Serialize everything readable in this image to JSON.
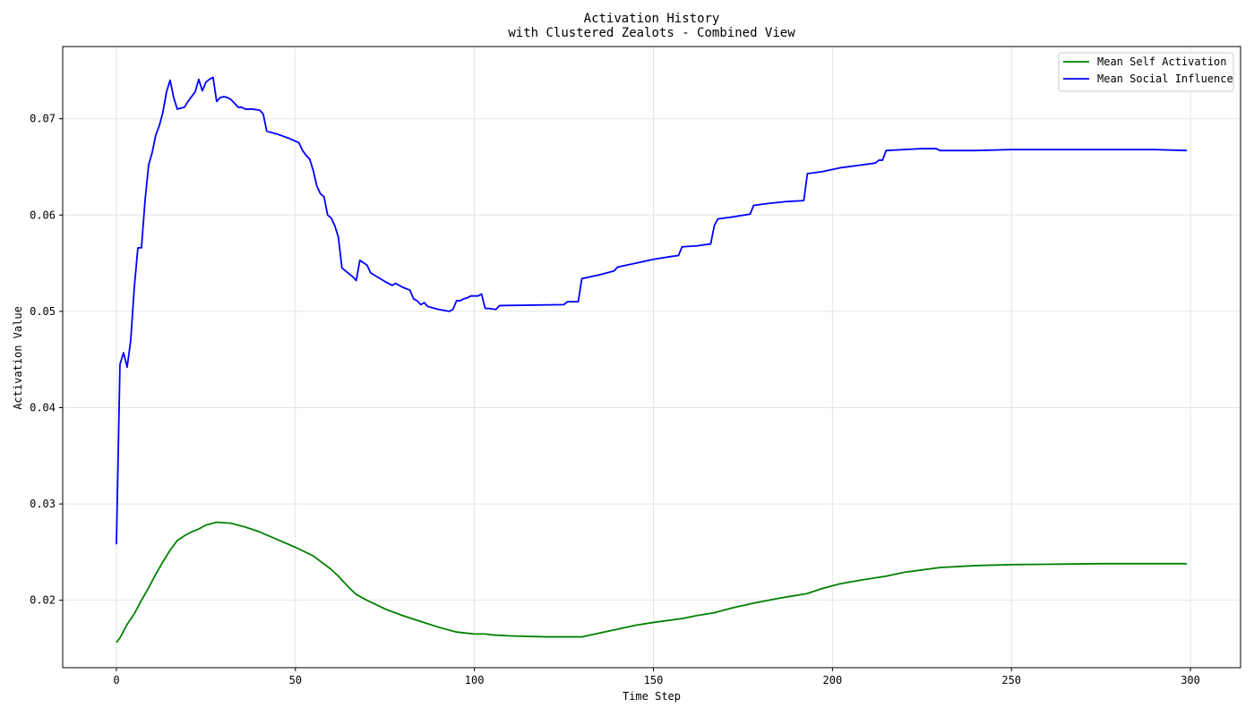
{
  "chart_data": {
    "type": "line",
    "title": "Activation History",
    "subtitle": "with Clustered Zealots - Combined View",
    "xlabel": "Time Step",
    "ylabel": "Activation Value",
    "xlim": [
      -15,
      314
    ],
    "ylim": [
      0.013,
      0.0775
    ],
    "xticks": [
      "0",
      "50",
      "100",
      "150",
      "200",
      "250",
      "300"
    ],
    "yticks": [
      "0.02",
      "0.03",
      "0.04",
      "0.05",
      "0.06",
      "0.07"
    ],
    "grid": true,
    "legend_position": "top-right",
    "series": [
      {
        "name": "Mean Self Activation",
        "color": "#008000",
        "points": [
          [
            0,
            0.0156
          ],
          [
            1,
            0.0161
          ],
          [
            3,
            0.0175
          ],
          [
            5,
            0.0186
          ],
          [
            7,
            0.02
          ],
          [
            9,
            0.0213
          ],
          [
            11,
            0.0227
          ],
          [
            13,
            0.024
          ],
          [
            15,
            0.0252
          ],
          [
            17,
            0.0262
          ],
          [
            19,
            0.0267
          ],
          [
            21,
            0.0271
          ],
          [
            23,
            0.0274
          ],
          [
            25,
            0.0278
          ],
          [
            28,
            0.0281
          ],
          [
            32,
            0.028
          ],
          [
            36,
            0.0276
          ],
          [
            40,
            0.0271
          ],
          [
            45,
            0.0263
          ],
          [
            50,
            0.0255
          ],
          [
            55,
            0.0246
          ],
          [
            60,
            0.0232
          ],
          [
            62,
            0.0225
          ],
          [
            65,
            0.0213
          ],
          [
            67,
            0.0206
          ],
          [
            70,
            0.02
          ],
          [
            75,
            0.0191
          ],
          [
            80,
            0.0184
          ],
          [
            85,
            0.0178
          ],
          [
            90,
            0.0172
          ],
          [
            95,
            0.0167
          ],
          [
            100,
            0.0165
          ],
          [
            103,
            0.0165
          ],
          [
            105,
            0.0164
          ],
          [
            110,
            0.0163
          ],
          [
            120,
            0.0162
          ],
          [
            130,
            0.0162
          ],
          [
            135,
            0.0166
          ],
          [
            140,
            0.017
          ],
          [
            145,
            0.0174
          ],
          [
            150,
            0.0177
          ],
          [
            158,
            0.0181
          ],
          [
            162,
            0.0184
          ],
          [
            167,
            0.0187
          ],
          [
            172,
            0.0192
          ],
          [
            178,
            0.0197
          ],
          [
            185,
            0.0202
          ],
          [
            193,
            0.0207
          ],
          [
            197,
            0.0212
          ],
          [
            202,
            0.0217
          ],
          [
            208,
            0.0221
          ],
          [
            215,
            0.0225
          ],
          [
            220,
            0.0229
          ],
          [
            230,
            0.0234
          ],
          [
            240,
            0.0236
          ],
          [
            250,
            0.0237
          ],
          [
            275,
            0.0238
          ],
          [
            299,
            0.0238
          ]
        ]
      },
      {
        "name": "Mean Social Influence",
        "color": "#0000ff",
        "points": [
          [
            0,
            0.0258
          ],
          [
            1,
            0.0445
          ],
          [
            2,
            0.0457
          ],
          [
            3,
            0.0442
          ],
          [
            4,
            0.047
          ],
          [
            5,
            0.0525
          ],
          [
            6,
            0.0566
          ],
          [
            7,
            0.0566
          ],
          [
            8,
            0.0615
          ],
          [
            9,
            0.0652
          ],
          [
            10,
            0.0665
          ],
          [
            11,
            0.0683
          ],
          [
            12,
            0.0693
          ],
          [
            13,
            0.0707
          ],
          [
            14,
            0.0728
          ],
          [
            15,
            0.074
          ],
          [
            16,
            0.0722
          ],
          [
            17,
            0.071
          ],
          [
            18,
            0.0711
          ],
          [
            19,
            0.0712
          ],
          [
            20,
            0.0718
          ],
          [
            21,
            0.0723
          ],
          [
            22,
            0.0728
          ],
          [
            23,
            0.0741
          ],
          [
            24,
            0.0729
          ],
          [
            25,
            0.0738
          ],
          [
            26,
            0.0741
          ],
          [
            27,
            0.0743
          ],
          [
            28,
            0.0718
          ],
          [
            29,
            0.0722
          ],
          [
            30,
            0.0723
          ],
          [
            31,
            0.0722
          ],
          [
            32,
            0.072
          ],
          [
            33,
            0.0716
          ],
          [
            34,
            0.0712
          ],
          [
            35,
            0.0712
          ],
          [
            36,
            0.071
          ],
          [
            38,
            0.071
          ],
          [
            40,
            0.0709
          ],
          [
            41,
            0.0705
          ],
          [
            42,
            0.0687
          ],
          [
            45,
            0.0684
          ],
          [
            48,
            0.068
          ],
          [
            51,
            0.0675
          ],
          [
            52,
            0.0667
          ],
          [
            53,
            0.0662
          ],
          [
            54,
            0.0658
          ],
          [
            55,
            0.0646
          ],
          [
            56,
            0.063
          ],
          [
            57,
            0.0622
          ],
          [
            58,
            0.0619
          ],
          [
            59,
            0.06
          ],
          [
            60,
            0.0597
          ],
          [
            61,
            0.0589
          ],
          [
            62,
            0.0577
          ],
          [
            63,
            0.0545
          ],
          [
            66,
            0.0536
          ],
          [
            67,
            0.0532
          ],
          [
            68,
            0.0553
          ],
          [
            70,
            0.0548
          ],
          [
            71,
            0.054
          ],
          [
            75,
            0.0531
          ],
          [
            77,
            0.0527
          ],
          [
            78,
            0.0529
          ],
          [
            80,
            0.0525
          ],
          [
            82,
            0.0522
          ],
          [
            83,
            0.0513
          ],
          [
            84,
            0.0511
          ],
          [
            85,
            0.0507
          ],
          [
            86,
            0.0509
          ],
          [
            87,
            0.0505
          ],
          [
            90,
            0.0502
          ],
          [
            93,
            0.05
          ],
          [
            94,
            0.0502
          ],
          [
            95,
            0.0511
          ],
          [
            96,
            0.0511
          ],
          [
            97,
            0.0513
          ],
          [
            98,
            0.0514
          ],
          [
            99,
            0.0516
          ],
          [
            101,
            0.0516
          ],
          [
            102,
            0.0518
          ],
          [
            103,
            0.0503
          ],
          [
            104,
            0.0503
          ],
          [
            106,
            0.0502
          ],
          [
            107,
            0.0506
          ],
          [
            125,
            0.0507
          ],
          [
            126,
            0.051
          ],
          [
            129,
            0.051
          ],
          [
            130,
            0.0534
          ],
          [
            135,
            0.0538
          ],
          [
            139,
            0.0542
          ],
          [
            140,
            0.0546
          ],
          [
            145,
            0.055
          ],
          [
            150,
            0.0554
          ],
          [
            155,
            0.0557
          ],
          [
            157,
            0.0558
          ],
          [
            158,
            0.0567
          ],
          [
            162,
            0.0568
          ],
          [
            166,
            0.057
          ],
          [
            167,
            0.0589
          ],
          [
            168,
            0.0596
          ],
          [
            172,
            0.0598
          ],
          [
            177,
            0.0601
          ],
          [
            178,
            0.061
          ],
          [
            182,
            0.0612
          ],
          [
            187,
            0.0614
          ],
          [
            192,
            0.0615
          ],
          [
            193,
            0.0643
          ],
          [
            197,
            0.0645
          ],
          [
            202,
            0.0649
          ],
          [
            208,
            0.0652
          ],
          [
            212,
            0.0654
          ],
          [
            213,
            0.0657
          ],
          [
            214,
            0.0657
          ],
          [
            215,
            0.0667
          ],
          [
            220,
            0.0668
          ],
          [
            225,
            0.0669
          ],
          [
            229,
            0.0669
          ],
          [
            230,
            0.0667
          ],
          [
            240,
            0.0667
          ],
          [
            250,
            0.0668
          ],
          [
            270,
            0.0668
          ],
          [
            290,
            0.0668
          ],
          [
            299,
            0.0667
          ]
        ]
      }
    ]
  }
}
